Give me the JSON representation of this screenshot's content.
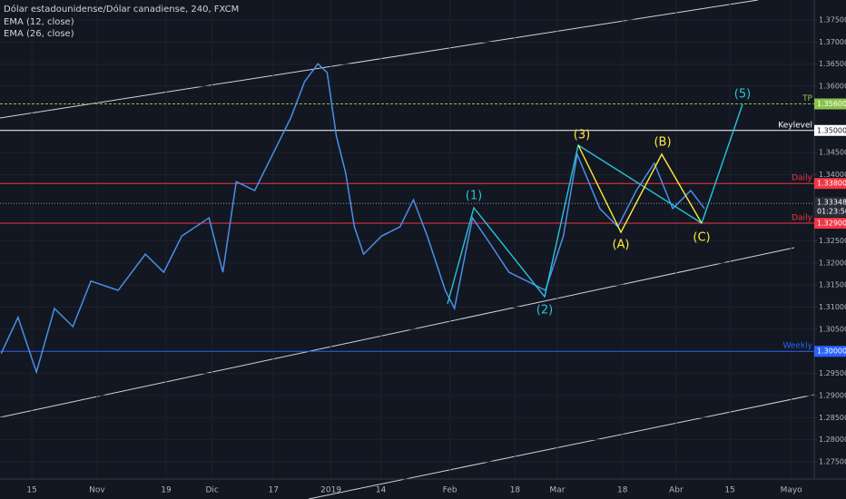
{
  "chart_data": {
    "type": "line",
    "title": "Dólar estadounidense/Dólar canadiense, 240, FXCM",
    "indicators": [
      "EMA (12, close)",
      "EMA (26, close)"
    ],
    "x": [
      6,
      10.4,
      15.2,
      19.9,
      24.7,
      29.4,
      36.5,
      43.6,
      48.4,
      53.1,
      60.2,
      63.8,
      67.3,
      72.1,
      76.8,
      81.5,
      85.1,
      88.6,
      91,
      93.4,
      95.8,
      98.1,
      100.5,
      105.2,
      110,
      113.5,
      117.1,
      121.8,
      124.2,
      128.9,
      133.7,
      138.4,
      143.1,
      147.9,
      152.6,
      156.2,
      162.1,
      166.8,
      171.6,
      176.3,
      181.1,
      185.8,
      189.4
    ],
    "series": [
      {
        "color": "#4a8fe7",
        "values": [
          1.2995,
          1.3077,
          1.2953,
          1.3097,
          1.3056,
          1.3159,
          1.3138,
          1.322,
          1.3179,
          1.3261,
          1.3302,
          1.3179,
          1.3384,
          1.3364,
          1.3446,
          1.3528,
          1.361,
          1.3651,
          1.3631,
          1.3487,
          1.3405,
          1.3282,
          1.322,
          1.3261,
          1.3282,
          1.3343,
          1.3261,
          1.3138,
          1.3097,
          1.3302,
          1.3241,
          1.3179,
          1.3159,
          1.3138,
          1.3261,
          1.3446,
          1.3323,
          1.3282,
          1.3364,
          1.3426,
          1.3323,
          1.3364,
          1.3323
        ]
      }
    ],
    "xlim": [
      5.7,
      218
    ],
    "xticks": [
      {
        "value": 14,
        "label": "15"
      },
      {
        "value": 31,
        "label": "Nov"
      },
      {
        "value": 49,
        "label": "19"
      },
      {
        "value": 61,
        "label": "Dic"
      },
      {
        "value": 77,
        "label": "17"
      },
      {
        "value": 92,
        "label": "2019"
      },
      {
        "value": 105,
        "label": "14"
      },
      {
        "value": 123,
        "label": "Feb"
      },
      {
        "value": 140,
        "label": "18"
      },
      {
        "value": 151,
        "label": "Mar"
      },
      {
        "value": 168,
        "label": "18"
      },
      {
        "value": 182,
        "label": "Abr"
      },
      {
        "value": 196,
        "label": "15"
      },
      {
        "value": 212,
        "label": "Mayo"
      }
    ],
    "ylim": [
      1.26658,
      1.37952
    ],
    "yticks": [
      {
        "value": 1.275,
        "label": "1.27500"
      },
      {
        "value": 1.28,
        "label": "1.28000"
      },
      {
        "value": 1.285,
        "label": "1.28500"
      },
      {
        "value": 1.29,
        "label": "1.29000"
      },
      {
        "value": 1.295,
        "label": "1.29500"
      },
      {
        "value": 1.305,
        "label": "1.30500"
      },
      {
        "value": 1.31,
        "label": "1.31000"
      },
      {
        "value": 1.315,
        "label": "1.31500"
      },
      {
        "value": 1.32,
        "label": "1.32000"
      },
      {
        "value": 1.325,
        "label": "1.32500"
      },
      {
        "value": 1.34,
        "label": "1.34000"
      },
      {
        "value": 1.345,
        "label": "1.34500"
      },
      {
        "value": 1.36,
        "label": "1.36000"
      },
      {
        "value": 1.365,
        "label": "1.36500"
      },
      {
        "value": 1.37,
        "label": "1.37000"
      },
      {
        "value": 1.375,
        "label": "1.37500"
      }
    ],
    "levels": [
      {
        "name": "TP",
        "value": 1.356,
        "label": "1.35600",
        "color": "#8bc34a"
      },
      {
        "name": "Keylevel",
        "value": 1.35,
        "label": "1.35000",
        "color": "#ffffff"
      },
      {
        "name": "Daily",
        "value": 1.338,
        "label": "1.33800",
        "color": "#f23645"
      },
      {
        "name": "Daily",
        "value": 1.329,
        "label": "1.32900",
        "color": "#f23645"
      },
      {
        "name": "Weekly",
        "value": 1.3,
        "label": "1.30000",
        "color": "#2962ff"
      }
    ],
    "last_price": {
      "value": 1.33348,
      "countdown": "01:23:50"
    },
    "wave_labels": [
      "(1)",
      "(2)",
      "(3)",
      "(A)",
      "(B)",
      "(C)",
      "(5)"
    ]
  }
}
